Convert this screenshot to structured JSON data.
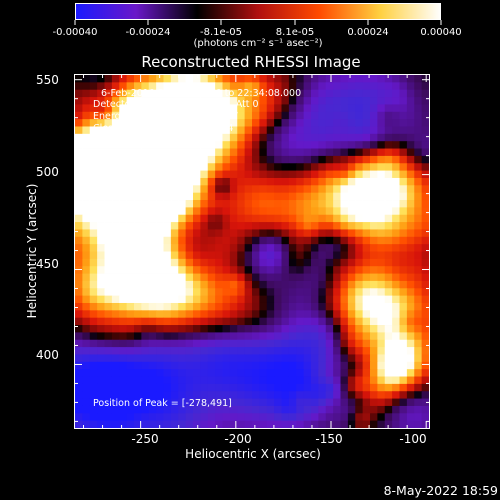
{
  "colorbar": {
    "ticks": [
      "-0.00040",
      "-0.00024",
      "-8.1e-05",
      "8.1e-05",
      "0.00024",
      "0.00040"
    ],
    "unit_label": "(photons cm⁻² s⁻¹ asec⁻²)",
    "colors": [
      "#1a1aff",
      "#6a18c8",
      "#000000",
      "#b01010",
      "#ff4a00",
      "#ffd040",
      "#ffffff"
    ]
  },
  "chart_data": {
    "type": "heatmap",
    "title": "Reconstructed RHESSI Image",
    "xlabel": "Heliocentric X (arcsec)",
    "ylabel": "Heliocentric Y (arcsec)",
    "xlim": [
      -285,
      -98
    ],
    "ylim": [
      366,
      553
    ],
    "x_ticks": [
      -250,
      -200,
      -150,
      -100
    ],
    "y_ticks": [
      400,
      450,
      500,
      550
    ],
    "value_range": [
      -0.0004,
      0.0004
    ],
    "annotations": {
      "time_range": "6-Feb-2010 22:28:08.000 to 22:34:08.000",
      "detectors": "Detectors: 3F 4F 5F 6F 7F 8F, Att 0",
      "energy_range": "Energy Range: 25.0 - 50.0 keV",
      "method": "Clean     Total counts: 1.49E+04",
      "peak": "Position of Peak = [-278,491]"
    }
  },
  "footer": {
    "date": "8-May-2022 18:59"
  }
}
